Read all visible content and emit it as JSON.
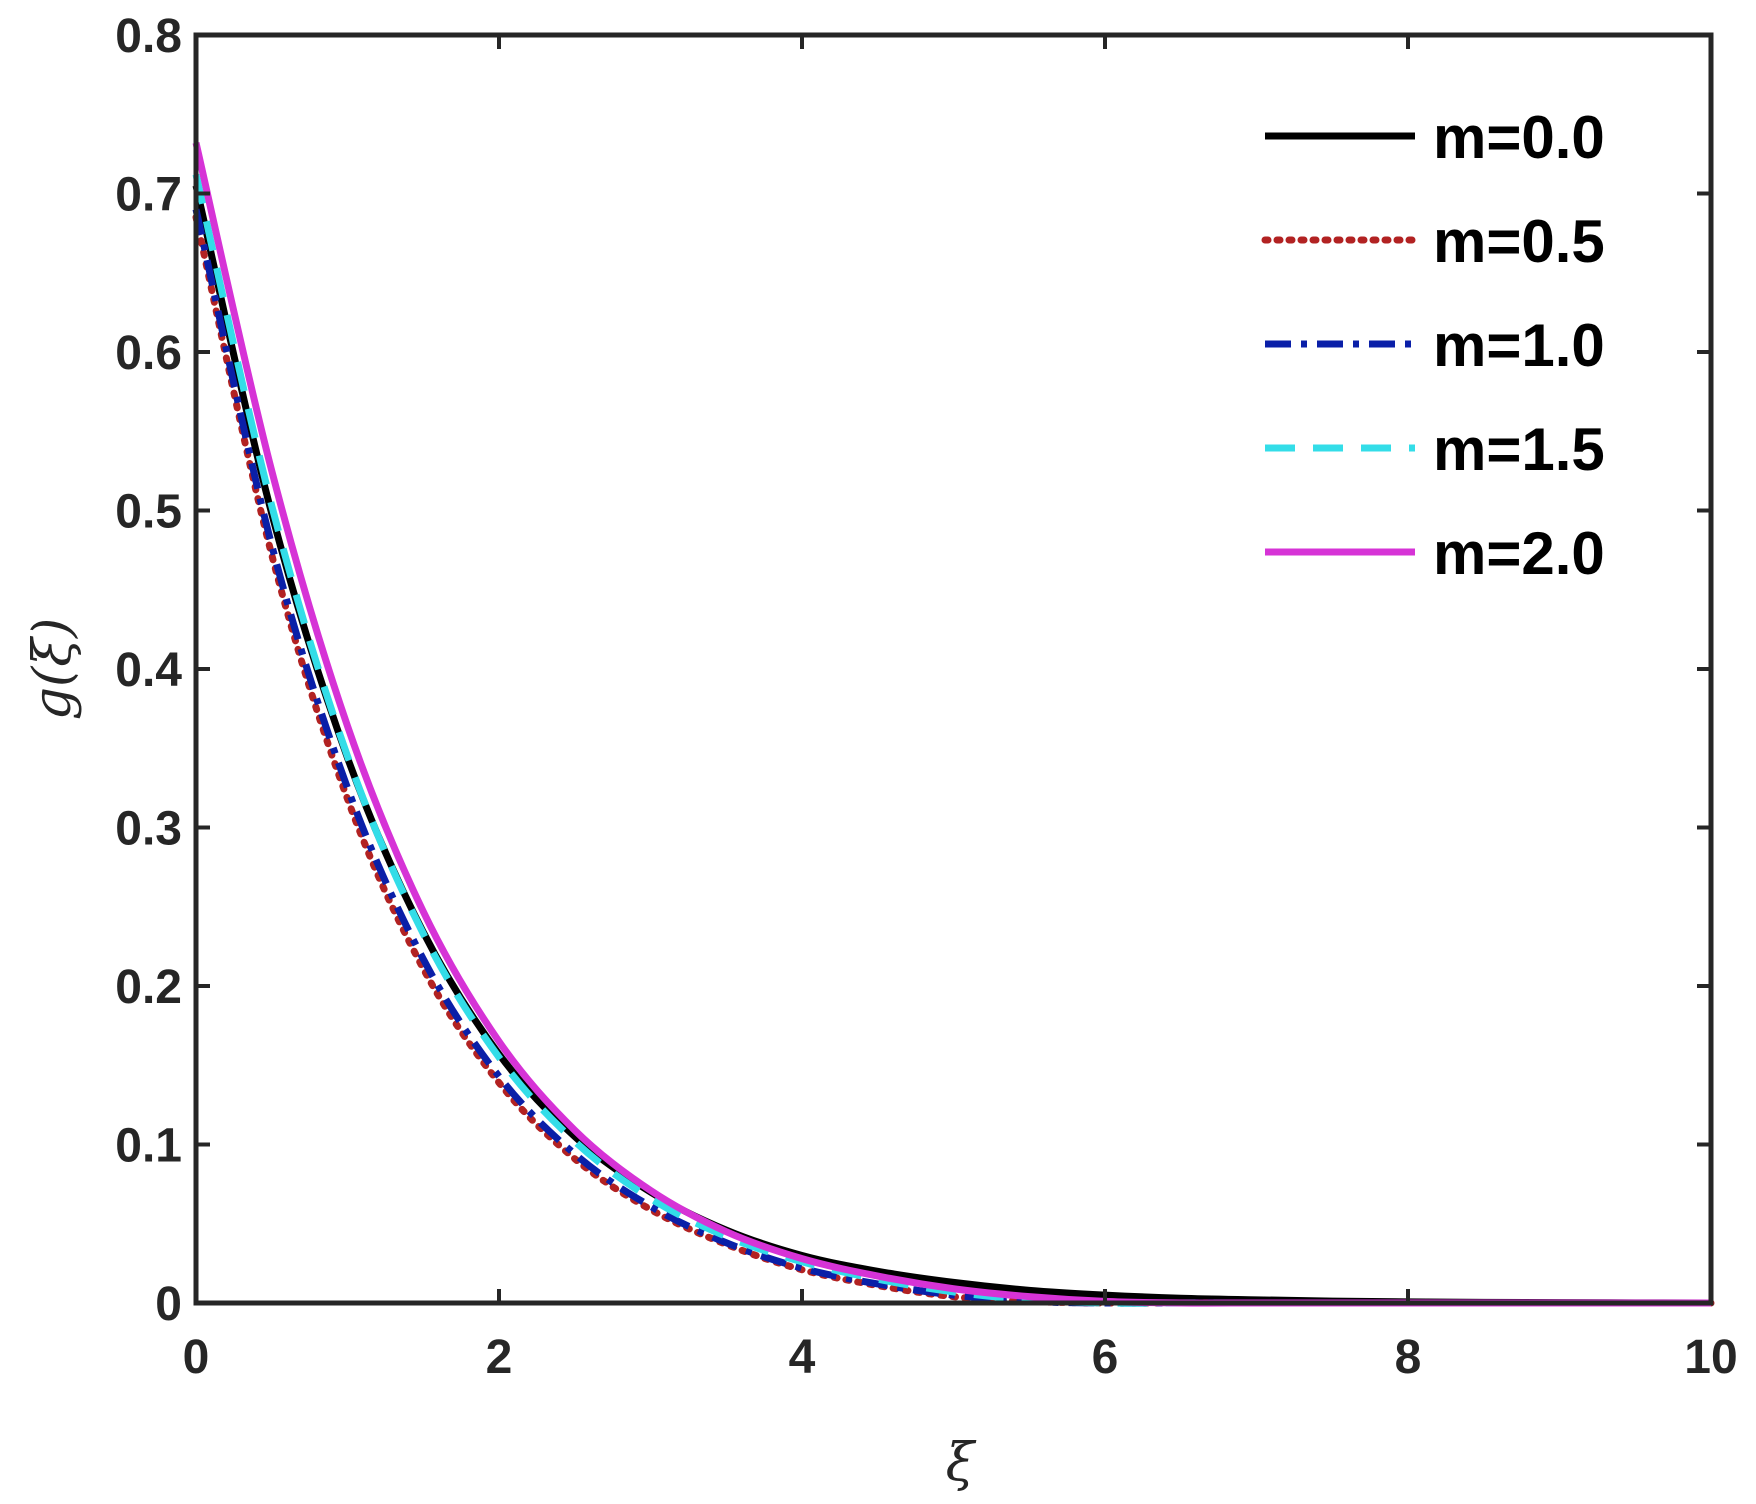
{
  "chart_data": {
    "type": "line",
    "title": "",
    "xlabel": "ξ",
    "ylabel": "g(ξ)",
    "xlim": [
      0,
      10
    ],
    "ylim": [
      0,
      0.8
    ],
    "x_ticks": [
      "0",
      "2",
      "4",
      "6",
      "8",
      "10"
    ],
    "y_ticks": [
      "0",
      "0.1",
      "0.2",
      "0.3",
      "0.4",
      "0.5",
      "0.6",
      "0.7",
      "0.8"
    ],
    "grid": false,
    "legend_position": "top-right",
    "x": [
      0,
      0.5,
      1,
      1.5,
      2,
      2.5,
      3,
      3.5,
      4,
      4.5,
      5,
      5.5,
      6,
      6.5,
      7,
      7.5,
      8,
      8.5,
      9,
      9.5,
      10
    ],
    "series": [
      {
        "name": "m=0.0",
        "color": "#000000",
        "style": "solid",
        "values": [
          0.705,
          0.498,
          0.344,
          0.234,
          0.157,
          0.105,
          0.07,
          0.046,
          0.03,
          0.02,
          0.013,
          0.008,
          0.005,
          0.003,
          0.002,
          0.0012,
          0.0007,
          0.0004,
          0.0002,
          0.0001,
          0.0
        ]
      },
      {
        "name": "m=0.5",
        "color": "#b22222",
        "style": "dotted",
        "values": [
          0.685,
          0.472,
          0.318,
          0.211,
          0.139,
          0.091,
          0.059,
          0.037,
          0.021,
          0.011,
          0.004,
          0.001,
          0.0,
          0.0,
          0.0,
          0.0,
          0.0,
          0.0,
          0.0,
          0.0,
          0.0
        ]
      },
      {
        "name": "m=1.0",
        "color": "#0a1fa8",
        "style": "dashdot",
        "values": [
          0.69,
          0.478,
          0.325,
          0.217,
          0.143,
          0.094,
          0.061,
          0.038,
          0.022,
          0.012,
          0.005,
          0.001,
          0.0,
          0.0,
          0.0,
          0.0,
          0.0,
          0.0,
          0.0,
          0.0,
          0.0
        ]
      },
      {
        "name": "m=1.5",
        "color": "#33dde8",
        "style": "dashed",
        "values": [
          0.712,
          0.503,
          0.345,
          0.233,
          0.155,
          0.102,
          0.066,
          0.042,
          0.026,
          0.015,
          0.007,
          0.002,
          0.0,
          0.0,
          0.0,
          0.0,
          0.0,
          0.0,
          0.0,
          0.0,
          0.0
        ]
      },
      {
        "name": "m=2.0",
        "color": "#d633d6",
        "style": "solid",
        "values": [
          0.732,
          0.525,
          0.364,
          0.247,
          0.165,
          0.109,
          0.071,
          0.045,
          0.028,
          0.017,
          0.009,
          0.004,
          0.001,
          0.0,
          0.0,
          0.0,
          0.0,
          0.0,
          0.0,
          0.0,
          0.0
        ]
      }
    ]
  }
}
